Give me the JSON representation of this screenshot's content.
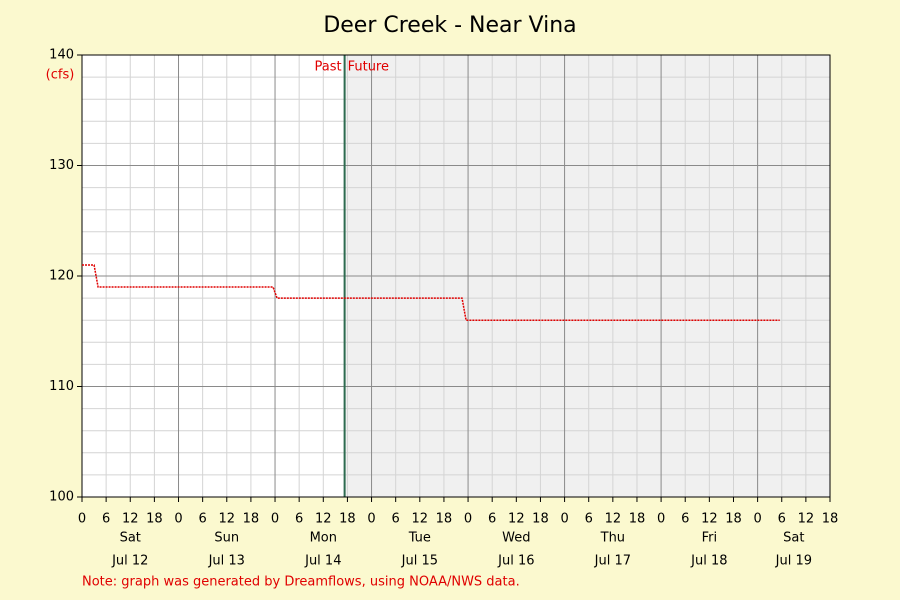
{
  "chart_data": {
    "type": "line",
    "title": "Deer Creek - Near Vina",
    "y_unit": "(cfs)",
    "past_label": "Past",
    "future_label": "Future",
    "note": "Note: graph was generated by Dreamflows, using NOAA/NWS data.",
    "now": 65.3,
    "x": [
      0,
      3,
      4,
      47.5,
      48.5,
      94.5,
      95.5,
      173.5
    ],
    "values": [
      121,
      121,
      119,
      119,
      118,
      118,
      116,
      116
    ],
    "color": "#e00000",
    "xlim": [
      0,
      186
    ],
    "ylim": [
      100,
      140
    ],
    "yticks": [
      100,
      110,
      120,
      130,
      140
    ],
    "y_minor_ticks": [
      102,
      104,
      106,
      108,
      112,
      114,
      116,
      118,
      122,
      124,
      126,
      128,
      132,
      134,
      136,
      138
    ],
    "xticks": [
      0,
      6,
      12,
      18,
      {
        "value": 24,
        "label": "0"
      },
      {
        "value": 30,
        "label": "6"
      },
      {
        "value": 36,
        "label": "12"
      },
      {
        "value": 42,
        "label": "18"
      },
      {
        "value": 48,
        "label": "0"
      },
      {
        "value": 54,
        "label": "6"
      },
      {
        "value": 60,
        "label": "12"
      },
      {
        "value": 66,
        "label": "18"
      },
      {
        "value": 72,
        "label": "0"
      },
      {
        "value": 78,
        "label": "6"
      },
      {
        "value": 84,
        "label": "12"
      },
      {
        "value": 90,
        "label": "18"
      },
      {
        "value": 96,
        "label": "0"
      },
      {
        "value": 102,
        "label": "6"
      },
      {
        "value": 108,
        "label": "12"
      },
      {
        "value": 114,
        "label": "18"
      },
      {
        "value": 120,
        "label": "0"
      },
      {
        "value": 126,
        "label": "6"
      },
      {
        "value": 132,
        "label": "12"
      },
      {
        "value": 138,
        "label": "18"
      },
      {
        "value": 144,
        "label": "0"
      },
      {
        "value": 150,
        "label": "6"
      },
      {
        "value": 156,
        "label": "12"
      },
      {
        "value": 162,
        "label": "18"
      },
      {
        "value": 168,
        "label": "0"
      },
      {
        "value": 174,
        "label": "6"
      },
      {
        "value": 180,
        "label": "12"
      },
      {
        "value": 186,
        "label": "18"
      }
    ],
    "day_labels": [
      {
        "value": 12,
        "weekday": "Sat",
        "date": "Jul 12"
      },
      {
        "value": 36,
        "weekday": "Sun",
        "date": "Jul 13"
      },
      {
        "value": 60,
        "weekday": "Mon",
        "date": "Jul 14"
      },
      {
        "value": 84,
        "weekday": "Tue",
        "date": "Jul 15"
      },
      {
        "value": 108,
        "weekday": "Wed",
        "date": "Jul 16"
      },
      {
        "value": 132,
        "weekday": "Thu",
        "date": "Jul 17"
      },
      {
        "value": 156,
        "weekday": "Fri",
        "date": "Jul 18"
      },
      {
        "value": 177,
        "weekday": "Sat",
        "date": "Jul 19"
      }
    ]
  }
}
